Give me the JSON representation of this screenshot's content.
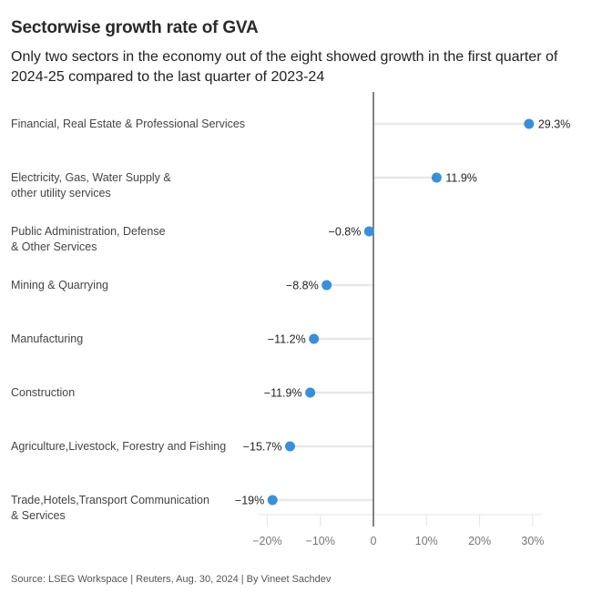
{
  "header": {
    "title": "Sectorwise growth rate of GVA",
    "subtitle": "Only two sectors in the economy out of the eight showed growth in the first quarter of 2024-25 compared to the last quarter of 2023-24"
  },
  "footer": {
    "source": "Source: LSEG Workspace | Reuters, Aug. 30, 2024 | By Vineet Sachdev"
  },
  "colors": {
    "dot": "#3a8fd8",
    "stem": "#e8e8e8",
    "zero_line": "#333333",
    "grid": "#e6e6e6"
  },
  "chart_data": {
    "type": "dot",
    "title": "Sectorwise growth rate of GVA",
    "subtitle": "Only two sectors in the economy out of the eight showed growth in the first quarter of 2024-25 compared to the last quarter of 2023-24",
    "xlabel": "",
    "ylabel": "",
    "xlim": [
      -22,
      31
    ],
    "x_ticks": [
      -20,
      -10,
      0,
      10,
      20,
      30
    ],
    "x_tick_labels": [
      "−20%",
      "−10%",
      "0",
      "10%",
      "20%",
      "30%"
    ],
    "grid": false,
    "categories": [
      [
        "Financial, Real Estate & Professional Services"
      ],
      [
        "Electricity, Gas, Water Supply &",
        "other utility services"
      ],
      [
        "Public Administration, Defense",
        "& Other Services"
      ],
      [
        "Mining & Quarrying"
      ],
      [
        "Manufacturing"
      ],
      [
        "Construction"
      ],
      [
        "Agriculture,Livestock, Forestry and Fishing"
      ],
      [
        "Trade,Hotels,Transport Communication",
        "& Services"
      ]
    ],
    "values": [
      29.3,
      11.9,
      -0.8,
      -8.8,
      -11.2,
      -11.9,
      -15.7,
      -19
    ],
    "value_labels": [
      "29.3%",
      "11.9%",
      "−0.8%",
      "−8.8%",
      "−11.2%",
      "−11.9%",
      "−15.7%",
      "−19%"
    ],
    "unit": "%"
  }
}
